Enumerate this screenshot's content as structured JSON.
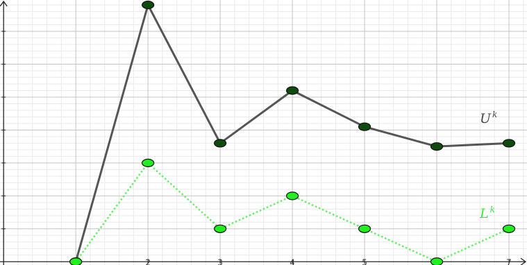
{
  "chart_data": {
    "type": "line",
    "title": "",
    "xlabel": "",
    "ylabel": "",
    "x": [
      1,
      2,
      3,
      4,
      5,
      6,
      7
    ],
    "xlim": [
      -0.05,
      7.25
    ],
    "ylim": [
      -0.1,
      7.95
    ],
    "x_ticks": [
      "2",
      "3",
      "4",
      "5",
      "6",
      "7"
    ],
    "y_ticks": [
      "1",
      "2",
      "3",
      "4",
      "5",
      "6",
      "7"
    ],
    "grid": true,
    "series": [
      {
        "name": "U",
        "name_sup": "k",
        "values": [
          0,
          7.8,
          3.6,
          5.2,
          4.1,
          3.5,
          3.6
        ],
        "color": "#555555",
        "marker_color": "#0f4a0f",
        "style": "solid"
      },
      {
        "name": "L",
        "name_sup": "k",
        "values": [
          0,
          3,
          1,
          2,
          1,
          0,
          1
        ],
        "color": "#66ee66",
        "marker_color": "#22ee22",
        "style": "dotted"
      }
    ]
  }
}
